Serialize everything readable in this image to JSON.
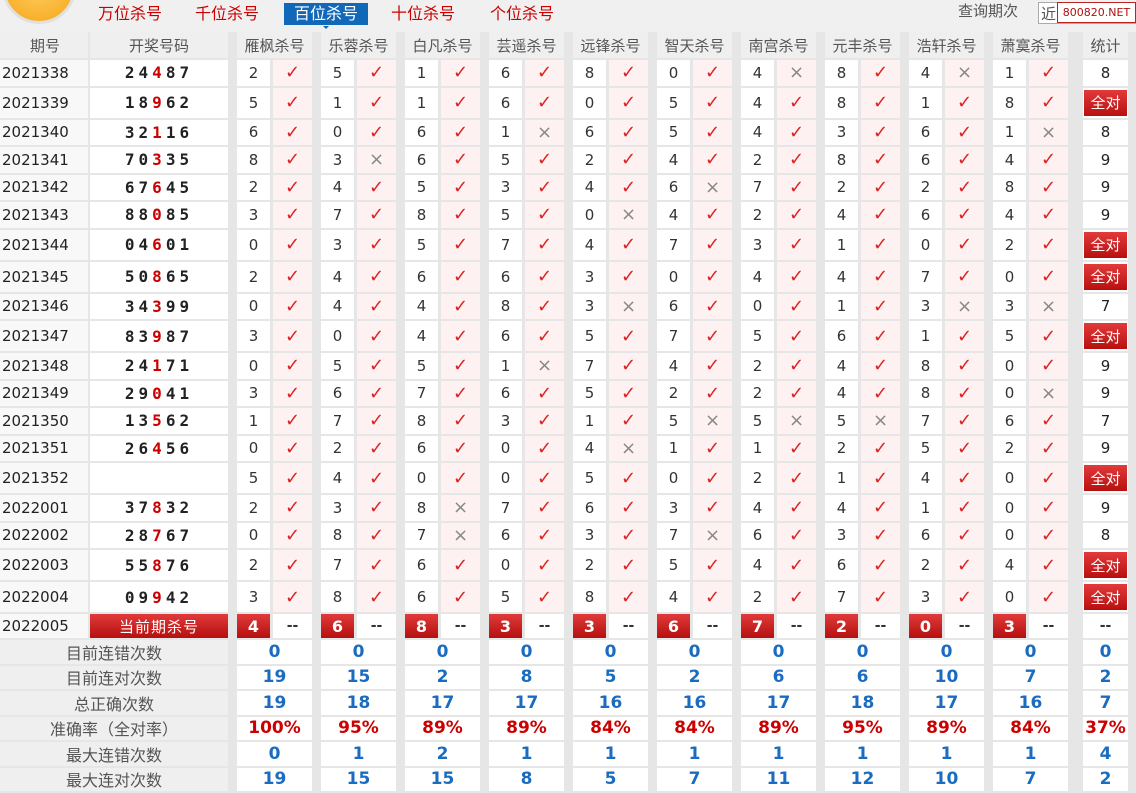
{
  "tabs": [
    {
      "label": "万位杀号"
    },
    {
      "label": "千位杀号"
    },
    {
      "label": "百位杀号",
      "active": true
    },
    {
      "label": "十位杀号"
    },
    {
      "label": "个位杀号"
    }
  ],
  "query": {
    "label": "查询期次",
    "value": "近",
    "watermark": "800820.NET"
  },
  "headers": {
    "period": "期号",
    "draw": "开奖号码",
    "experts": [
      "雁枫杀号",
      "乐蓉杀号",
      "白凡杀号",
      "芸遥杀号",
      "远锋杀号",
      "智天杀号",
      "南宫杀号",
      "元丰杀号",
      "浩轩杀号",
      "萧寞杀号"
    ],
    "stat": "统计"
  },
  "highlight_digit_position": "百位",
  "colors": {
    "accent": "#c00000",
    "tab_active": "#1268b8",
    "stat_value": "#1a6cc0"
  },
  "icons": {
    "hit": "check-icon",
    "miss": "cross-icon"
  },
  "rows": [
    {
      "period": "2021338",
      "draw": "24487",
      "kills": [
        "2",
        "5",
        "1",
        "6",
        "8",
        "0",
        "4",
        "8",
        "4",
        "1"
      ],
      "hits": [
        1,
        1,
        1,
        1,
        1,
        1,
        0,
        1,
        0,
        1
      ],
      "stat": "8"
    },
    {
      "period": "2021339",
      "draw": "18962",
      "kills": [
        "5",
        "1",
        "1",
        "6",
        "0",
        "5",
        "4",
        "8",
        "1",
        "8"
      ],
      "hits": [
        1,
        1,
        1,
        1,
        1,
        1,
        1,
        1,
        1,
        1
      ],
      "stat": "全对"
    },
    {
      "period": "2021340",
      "draw": "32116",
      "kills": [
        "6",
        "0",
        "6",
        "1",
        "6",
        "5",
        "4",
        "3",
        "6",
        "1"
      ],
      "hits": [
        1,
        1,
        1,
        0,
        1,
        1,
        1,
        1,
        1,
        0
      ],
      "stat": "8"
    },
    {
      "period": "2021341",
      "draw": "70335",
      "kills": [
        "8",
        "3",
        "6",
        "5",
        "2",
        "4",
        "2",
        "8",
        "6",
        "4"
      ],
      "hits": [
        1,
        0,
        1,
        1,
        1,
        1,
        1,
        1,
        1,
        1
      ],
      "stat": "9"
    },
    {
      "period": "2021342",
      "draw": "67645",
      "kills": [
        "2",
        "4",
        "5",
        "3",
        "4",
        "6",
        "7",
        "2",
        "2",
        "8"
      ],
      "hits": [
        1,
        1,
        1,
        1,
        1,
        0,
        1,
        1,
        1,
        1
      ],
      "stat": "9"
    },
    {
      "period": "2021343",
      "draw": "88085",
      "kills": [
        "3",
        "7",
        "8",
        "5",
        "0",
        "4",
        "2",
        "4",
        "6",
        "4"
      ],
      "hits": [
        1,
        1,
        1,
        1,
        0,
        1,
        1,
        1,
        1,
        1
      ],
      "stat": "9"
    },
    {
      "period": "2021344",
      "draw": "04601",
      "kills": [
        "0",
        "3",
        "5",
        "7",
        "4",
        "7",
        "3",
        "1",
        "0",
        "2"
      ],
      "hits": [
        1,
        1,
        1,
        1,
        1,
        1,
        1,
        1,
        1,
        1
      ],
      "stat": "全对"
    },
    {
      "period": "2021345",
      "draw": "50865",
      "kills": [
        "2",
        "4",
        "6",
        "6",
        "3",
        "0",
        "4",
        "4",
        "7",
        "0"
      ],
      "hits": [
        1,
        1,
        1,
        1,
        1,
        1,
        1,
        1,
        1,
        1
      ],
      "stat": "全对"
    },
    {
      "period": "2021346",
      "draw": "34399",
      "kills": [
        "0",
        "4",
        "4",
        "8",
        "3",
        "6",
        "0",
        "1",
        "3",
        "3"
      ],
      "hits": [
        1,
        1,
        1,
        1,
        0,
        1,
        1,
        1,
        0,
        0
      ],
      "stat": "7"
    },
    {
      "period": "2021347",
      "draw": "83987",
      "kills": [
        "3",
        "0",
        "4",
        "6",
        "5",
        "7",
        "5",
        "6",
        "1",
        "5"
      ],
      "hits": [
        1,
        1,
        1,
        1,
        1,
        1,
        1,
        1,
        1,
        1
      ],
      "stat": "全对"
    },
    {
      "period": "2021348",
      "draw": "24171",
      "kills": [
        "0",
        "5",
        "5",
        "1",
        "7",
        "4",
        "2",
        "4",
        "8",
        "0"
      ],
      "hits": [
        1,
        1,
        1,
        0,
        1,
        1,
        1,
        1,
        1,
        1
      ],
      "stat": "9"
    },
    {
      "period": "2021349",
      "draw": "29041",
      "kills": [
        "3",
        "6",
        "7",
        "6",
        "5",
        "2",
        "2",
        "4",
        "8",
        "0"
      ],
      "hits": [
        1,
        1,
        1,
        1,
        1,
        1,
        1,
        1,
        1,
        0
      ],
      "stat": "9"
    },
    {
      "period": "2021350",
      "draw": "13562",
      "kills": [
        "1",
        "7",
        "8",
        "3",
        "1",
        "5",
        "5",
        "5",
        "7",
        "6"
      ],
      "hits": [
        1,
        1,
        1,
        1,
        1,
        0,
        0,
        0,
        1,
        1
      ],
      "stat": "7"
    },
    {
      "period": "2021351",
      "draw": "26456",
      "kills": [
        "0",
        "2",
        "6",
        "0",
        "4",
        "1",
        "1",
        "2",
        "5",
        "2"
      ],
      "hits": [
        1,
        1,
        1,
        1,
        0,
        1,
        1,
        1,
        1,
        1
      ],
      "stat": "9"
    },
    {
      "period": "2021352",
      "draw": "",
      "kills": [
        "5",
        "4",
        "0",
        "0",
        "5",
        "0",
        "2",
        "1",
        "4",
        "0"
      ],
      "hits": [
        1,
        1,
        1,
        1,
        1,
        1,
        1,
        1,
        1,
        1
      ],
      "stat": "全对"
    },
    {
      "period": "2022001",
      "draw": "37832",
      "kills": [
        "2",
        "3",
        "8",
        "7",
        "6",
        "3",
        "4",
        "4",
        "1",
        "0"
      ],
      "hits": [
        1,
        1,
        0,
        1,
        1,
        1,
        1,
        1,
        1,
        1
      ],
      "stat": "9"
    },
    {
      "period": "2022002",
      "draw": "28767",
      "kills": [
        "0",
        "8",
        "7",
        "6",
        "3",
        "7",
        "6",
        "3",
        "6",
        "0"
      ],
      "hits": [
        1,
        1,
        0,
        1,
        1,
        0,
        1,
        1,
        1,
        1
      ],
      "stat": "8"
    },
    {
      "period": "2022003",
      "draw": "55876",
      "kills": [
        "2",
        "7",
        "6",
        "0",
        "2",
        "5",
        "4",
        "6",
        "2",
        "4"
      ],
      "hits": [
        1,
        1,
        1,
        1,
        1,
        1,
        1,
        1,
        1,
        1
      ],
      "stat": "全对"
    },
    {
      "period": "2022004",
      "draw": "09942",
      "kills": [
        "3",
        "8",
        "6",
        "5",
        "8",
        "4",
        "2",
        "7",
        "3",
        "0"
      ],
      "hits": [
        1,
        1,
        1,
        1,
        1,
        1,
        1,
        1,
        1,
        1
      ],
      "stat": "全对"
    }
  ],
  "current": {
    "period": "2022005",
    "label": "当前期杀号",
    "kills": [
      "4",
      "6",
      "8",
      "3",
      "3",
      "6",
      "7",
      "2",
      "0",
      "3"
    ],
    "placeholder": "--"
  },
  "marks": {
    "hit": "✓",
    "miss": "×"
  },
  "stats": [
    {
      "label": "目前连错次数",
      "values": [
        "0",
        "0",
        "0",
        "0",
        "0",
        "0",
        "0",
        "0",
        "0",
        "0"
      ],
      "total": "0"
    },
    {
      "label": "目前连对次数",
      "values": [
        "19",
        "15",
        "2",
        "8",
        "5",
        "2",
        "6",
        "6",
        "10",
        "7"
      ],
      "total": "2"
    },
    {
      "label": "总正确次数",
      "values": [
        "19",
        "18",
        "17",
        "17",
        "16",
        "16",
        "17",
        "18",
        "17",
        "16"
      ],
      "total": "7"
    },
    {
      "label": "准确率（全对率）",
      "values": [
        "100%",
        "95%",
        "89%",
        "89%",
        "84%",
        "84%",
        "89%",
        "95%",
        "89%",
        "84%"
      ],
      "total": "37%",
      "pct": true
    },
    {
      "label": "最大连错次数",
      "values": [
        "0",
        "1",
        "2",
        "1",
        "1",
        "1",
        "1",
        "1",
        "1",
        "1"
      ],
      "total": "4"
    },
    {
      "label": "最大连对次数",
      "values": [
        "19",
        "15",
        "15",
        "8",
        "5",
        "7",
        "11",
        "12",
        "10",
        "7"
      ],
      "total": "2"
    }
  ]
}
